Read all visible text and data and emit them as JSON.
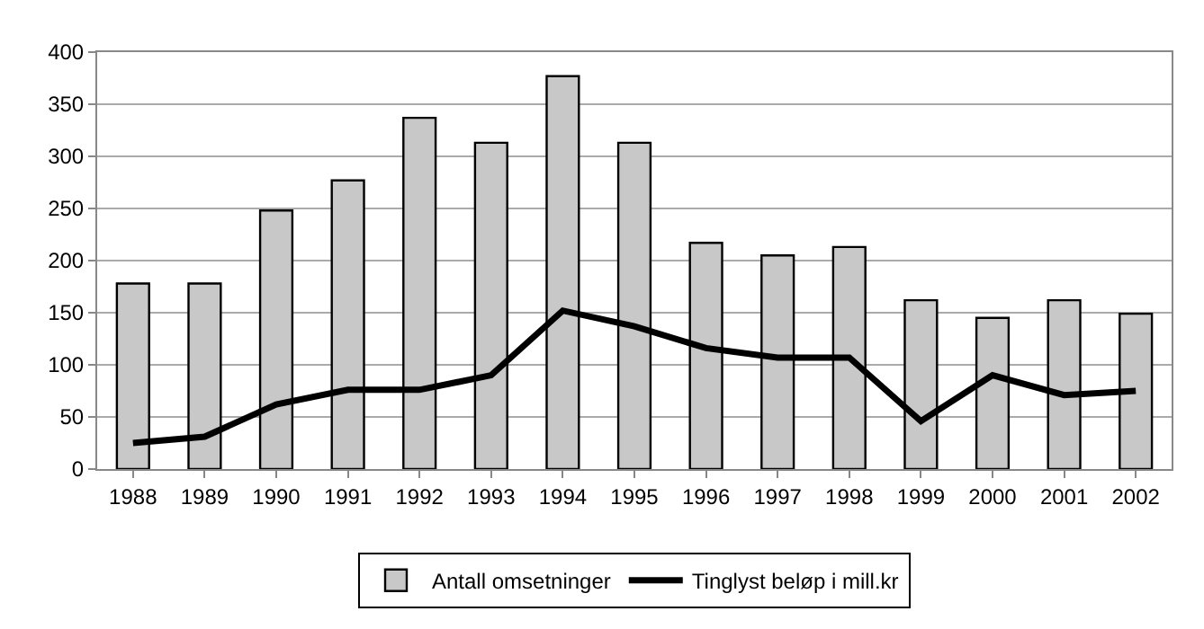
{
  "chart_data": {
    "type": "bar",
    "categories": [
      "1988",
      "1989",
      "1990",
      "1991",
      "1992",
      "1993",
      "1994",
      "1995",
      "1996",
      "1997",
      "1998",
      "1999",
      "2000",
      "2001",
      "2002"
    ],
    "series": [
      {
        "name": "Antall omsetninger",
        "color": "#c8c8c8",
        "values": [
          178,
          178,
          248,
          277,
          337,
          313,
          377,
          313,
          217,
          205,
          213,
          162,
          145,
          162,
          149
        ]
      },
      {
        "name": "Tinglyst beløp i mill.kr",
        "type": "line",
        "color": "#000000",
        "values": [
          25,
          31,
          62,
          76,
          76,
          90,
          152,
          137,
          116,
          107,
          107,
          46,
          90,
          71,
          75
        ]
      }
    ],
    "ylim": [
      0,
      400
    ],
    "yticks": [
      0,
      50,
      100,
      150,
      200,
      250,
      300,
      350,
      400
    ],
    "grid": "y",
    "legend": "bottom",
    "marker": "none",
    "line_style": "solid"
  }
}
